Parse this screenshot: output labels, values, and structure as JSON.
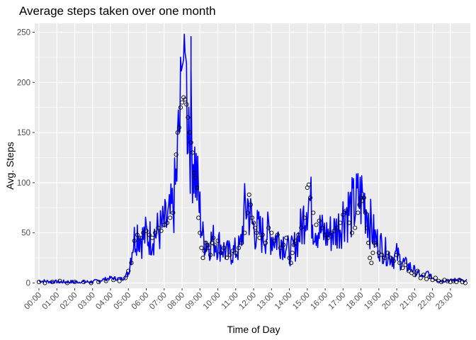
{
  "chart_data": {
    "type": "line",
    "title": "Average steps taken over one month",
    "xlabel": "Time of Day",
    "ylabel": "Avg. Steps",
    "xlim": [
      0,
      1435
    ],
    "ylim": [
      0,
      250
    ],
    "grid": true,
    "legend": "none",
    "x_unit": "minutes since midnight (5-minute intervals)",
    "x_tick_labels": [
      "00:00",
      "01:00",
      "02:00",
      "03:00",
      "04:00",
      "05:00",
      "06:00",
      "07:00",
      "08:00",
      "09:00",
      "10:00",
      "11:00",
      "12:00",
      "13:00",
      "14:00",
      "15:00",
      "16:00",
      "17:00",
      "18:00",
      "19:00",
      "20:00",
      "21:00",
      "22:00",
      "23:00"
    ],
    "y_ticks": [
      0,
      50,
      100,
      150,
      200,
      250
    ],
    "colors": {
      "line": "#0000ff",
      "points": "#000000",
      "panel": "#ebebeb",
      "grid": "#ffffff"
    },
    "series": [
      {
        "style": "line",
        "values": [
          [
            0,
            2
          ],
          [
            60,
            1
          ],
          [
            120,
            1
          ],
          [
            180,
            1
          ],
          [
            240,
            5
          ],
          [
            280,
            4
          ],
          [
            300,
            10
          ],
          [
            315,
            40
          ],
          [
            330,
            52
          ],
          [
            345,
            44
          ],
          [
            360,
            48
          ],
          [
            375,
            45
          ],
          [
            390,
            50
          ],
          [
            405,
            52
          ],
          [
            420,
            58
          ],
          [
            435,
            62
          ],
          [
            450,
            75
          ],
          [
            460,
            100
          ],
          [
            470,
            150
          ],
          [
            480,
            185
          ],
          [
            490,
            200
          ],
          [
            500,
            178
          ],
          [
            510,
            150
          ],
          [
            520,
            125
          ],
          [
            530,
            100
          ],
          [
            540,
            70
          ],
          [
            550,
            45
          ],
          [
            560,
            42
          ],
          [
            570,
            38
          ],
          [
            580,
            43
          ],
          [
            600,
            40
          ],
          [
            615,
            35
          ],
          [
            630,
            30
          ],
          [
            645,
            30
          ],
          [
            660,
            32
          ],
          [
            675,
            35
          ],
          [
            690,
            70
          ],
          [
            700,
            80
          ],
          [
            710,
            65
          ],
          [
            720,
            55
          ],
          [
            735,
            52
          ],
          [
            750,
            48
          ],
          [
            765,
            50
          ],
          [
            780,
            47
          ],
          [
            795,
            45
          ],
          [
            810,
            44
          ],
          [
            825,
            40
          ],
          [
            840,
            30
          ],
          [
            855,
            35
          ],
          [
            870,
            45
          ],
          [
            885,
            60
          ],
          [
            900,
            88
          ],
          [
            910,
            80
          ],
          [
            920,
            62
          ],
          [
            935,
            55
          ],
          [
            950,
            50
          ],
          [
            965,
            48
          ],
          [
            980,
            50
          ],
          [
            995,
            52
          ],
          [
            1010,
            58
          ],
          [
            1025,
            72
          ],
          [
            1040,
            72
          ],
          [
            1055,
            75
          ],
          [
            1070,
            82
          ],
          [
            1085,
            85
          ],
          [
            1100,
            75
          ],
          [
            1115,
            55
          ],
          [
            1130,
            42
          ],
          [
            1145,
            38
          ],
          [
            1160,
            32
          ],
          [
            1175,
            28
          ],
          [
            1190,
            25
          ],
          [
            1200,
            28
          ],
          [
            1215,
            22
          ],
          [
            1230,
            18
          ],
          [
            1245,
            16
          ],
          [
            1260,
            12
          ],
          [
            1275,
            8
          ],
          [
            1290,
            6
          ],
          [
            1305,
            10
          ],
          [
            1320,
            5
          ],
          [
            1335,
            3
          ],
          [
            1350,
            2
          ],
          [
            1365,
            3
          ],
          [
            1380,
            2
          ],
          [
            1395,
            3
          ],
          [
            1410,
            4
          ],
          [
            1425,
            1
          ],
          [
            1435,
            2
          ]
        ]
      },
      {
        "style": "points",
        "values": [
          [
            0,
            1
          ],
          [
            20,
            0
          ],
          [
            45,
            1
          ],
          [
            70,
            2
          ],
          [
            95,
            0
          ],
          [
            120,
            1
          ],
          [
            150,
            1
          ],
          [
            175,
            0
          ],
          [
            200,
            1
          ],
          [
            225,
            2
          ],
          [
            250,
            3
          ],
          [
            270,
            2
          ],
          [
            290,
            5
          ],
          [
            300,
            12
          ],
          [
            310,
            20
          ],
          [
            320,
            42
          ],
          [
            330,
            48
          ],
          [
            340,
            45
          ],
          [
            350,
            50
          ],
          [
            360,
            52
          ],
          [
            370,
            48
          ],
          [
            380,
            45
          ],
          [
            390,
            50
          ],
          [
            400,
            55
          ],
          [
            410,
            52
          ],
          [
            420,
            58
          ],
          [
            430,
            60
          ],
          [
            440,
            65
          ],
          [
            450,
            70
          ],
          [
            460,
            128
          ],
          [
            465,
            150
          ],
          [
            470,
            155
          ],
          [
            475,
            175
          ],
          [
            480,
            180
          ],
          [
            485,
            185
          ],
          [
            490,
            183
          ],
          [
            495,
            178
          ],
          [
            500,
            165
          ],
          [
            505,
            150
          ],
          [
            510,
            140
          ],
          [
            515,
            130
          ],
          [
            520,
            110
          ],
          [
            525,
            105
          ],
          [
            530,
            95
          ],
          [
            535,
            65
          ],
          [
            540,
            50
          ],
          [
            545,
            35
          ],
          [
            550,
            25
          ],
          [
            555,
            32
          ],
          [
            560,
            40
          ],
          [
            565,
            38
          ],
          [
            570,
            35
          ],
          [
            575,
            28
          ],
          [
            580,
            40
          ],
          [
            585,
            45
          ],
          [
            590,
            38
          ],
          [
            600,
            42
          ],
          [
            610,
            30
          ],
          [
            620,
            35
          ],
          [
            630,
            25
          ],
          [
            640,
            28
          ],
          [
            650,
            32
          ],
          [
            660,
            30
          ],
          [
            670,
            35
          ],
          [
            680,
            40
          ],
          [
            690,
            50
          ],
          [
            700,
            70
          ],
          [
            705,
            88
          ],
          [
            710,
            78
          ],
          [
            715,
            65
          ],
          [
            720,
            60
          ],
          [
            725,
            55
          ],
          [
            730,
            50
          ],
          [
            740,
            45
          ],
          [
            750,
            48
          ],
          [
            760,
            40
          ],
          [
            770,
            55
          ],
          [
            780,
            50
          ],
          [
            790,
            42
          ],
          [
            800,
            48
          ],
          [
            810,
            35
          ],
          [
            820,
            38
          ],
          [
            830,
            45
          ],
          [
            840,
            25
          ],
          [
            845,
            20
          ],
          [
            850,
            30
          ],
          [
            855,
            38
          ],
          [
            860,
            42
          ],
          [
            870,
            48
          ],
          [
            880,
            55
          ],
          [
            890,
            65
          ],
          [
            900,
            95
          ],
          [
            905,
            98
          ],
          [
            910,
            85
          ],
          [
            920,
            70
          ],
          [
            930,
            58
          ],
          [
            940,
            62
          ],
          [
            950,
            55
          ],
          [
            960,
            48
          ],
          [
            970,
            45
          ],
          [
            980,
            50
          ],
          [
            990,
            52
          ],
          [
            1000,
            55
          ],
          [
            1010,
            60
          ],
          [
            1020,
            68
          ],
          [
            1030,
            72
          ],
          [
            1040,
            60
          ],
          [
            1050,
            50
          ],
          [
            1060,
            55
          ],
          [
            1070,
            70
          ],
          [
            1075,
            78
          ],
          [
            1080,
            85
          ],
          [
            1085,
            82
          ],
          [
            1090,
            85
          ],
          [
            1095,
            70
          ],
          [
            1100,
            55
          ],
          [
            1105,
            40
          ],
          [
            1110,
            25
          ],
          [
            1115,
            20
          ],
          [
            1120,
            30
          ],
          [
            1125,
            40
          ],
          [
            1130,
            38
          ],
          [
            1140,
            30
          ],
          [
            1150,
            28
          ],
          [
            1160,
            25
          ],
          [
            1170,
            30
          ],
          [
            1180,
            25
          ],
          [
            1190,
            22
          ],
          [
            1200,
            28
          ],
          [
            1210,
            20
          ],
          [
            1220,
            15
          ],
          [
            1230,
            18
          ],
          [
            1240,
            12
          ],
          [
            1250,
            10
          ],
          [
            1260,
            8
          ],
          [
            1270,
            12
          ],
          [
            1280,
            5
          ],
          [
            1290,
            8
          ],
          [
            1300,
            4
          ],
          [
            1310,
            6
          ],
          [
            1320,
            3
          ],
          [
            1330,
            5
          ],
          [
            1340,
            2
          ],
          [
            1350,
            1
          ],
          [
            1360,
            3
          ],
          [
            1370,
            2
          ],
          [
            1380,
            1
          ],
          [
            1390,
            2
          ],
          [
            1400,
            1
          ],
          [
            1410,
            3
          ],
          [
            1420,
            1
          ],
          [
            1430,
            0
          ]
        ]
      }
    ]
  }
}
